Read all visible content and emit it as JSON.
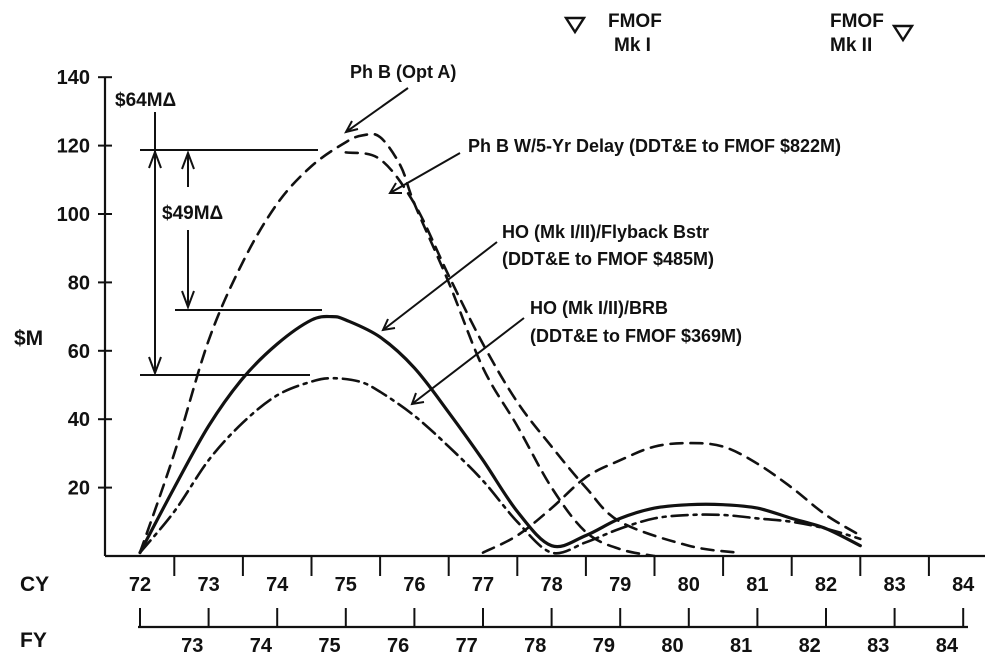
{
  "chart_data": {
    "type": "line",
    "ylabel": "$M",
    "ylim": [
      0,
      140
    ],
    "yticks": [
      20,
      40,
      60,
      80,
      100,
      120,
      140
    ],
    "x_axis_label": "CY",
    "x_ticks": [
      "72",
      "73",
      "74",
      "75",
      "76",
      "77",
      "78",
      "79",
      "80",
      "81",
      "82",
      "83",
      "84"
    ],
    "fy_axis_label": "FY",
    "fy_ticks": [
      "73",
      "74",
      "75",
      "76",
      "77",
      "78",
      "79",
      "80",
      "81",
      "82",
      "83",
      "84"
    ],
    "milestones": [
      {
        "line1": "FMOF",
        "line2": "Mk I"
      },
      {
        "line1": "FMOF",
        "line2": "Mk II"
      }
    ],
    "series": [
      {
        "name": "Ph B (Opt A)",
        "style": "dashed",
        "points": [
          [
            72,
            1
          ],
          [
            72.5,
            30
          ],
          [
            73,
            63
          ],
          [
            73.5,
            86
          ],
          [
            74,
            103
          ],
          [
            74.5,
            114
          ],
          [
            75,
            121
          ],
          [
            75.25,
            123
          ],
          [
            75.5,
            122.5
          ],
          [
            75.8,
            114
          ],
          [
            76,
            103
          ],
          [
            76.5,
            80
          ],
          [
            77,
            55
          ],
          [
            77.5,
            38
          ],
          [
            78,
            20
          ],
          [
            78.5,
            7
          ],
          [
            79,
            2
          ],
          [
            79.5,
            0
          ]
        ]
      },
      {
        "name": "Ph B W/5-Yr Delay (DDT&E to FMOF $822M)",
        "style": "dashed",
        "points": [
          [
            75,
            118
          ],
          [
            75.5,
            116
          ],
          [
            76,
            103
          ],
          [
            76.5,
            82
          ],
          [
            77,
            62
          ],
          [
            77.5,
            45
          ],
          [
            78,
            32
          ],
          [
            78.5,
            20
          ],
          [
            79,
            10
          ],
          [
            80,
            3
          ],
          [
            80.7,
            1
          ]
        ]
      },
      {
        "name": "",
        "style": "dashed",
        "points": [
          [
            77,
            1
          ],
          [
            77.5,
            6
          ],
          [
            78,
            14
          ],
          [
            78.5,
            23
          ],
          [
            79,
            28
          ],
          [
            79.5,
            32
          ],
          [
            80,
            33
          ],
          [
            80.5,
            32
          ],
          [
            81,
            27
          ],
          [
            81.5,
            20
          ],
          [
            82,
            12
          ],
          [
            82.5,
            6
          ]
        ]
      },
      {
        "name": "HO (Mk I/II)/Flyback Bstr (DDT&E to FMOF $485M)",
        "style": "solid",
        "points": [
          [
            72,
            1
          ],
          [
            72.5,
            20
          ],
          [
            73,
            38
          ],
          [
            73.5,
            52
          ],
          [
            74,
            62
          ],
          [
            74.5,
            69
          ],
          [
            74.8,
            70
          ],
          [
            75,
            69
          ],
          [
            75.5,
            64
          ],
          [
            76,
            55
          ],
          [
            76.5,
            42
          ],
          [
            77,
            28
          ],
          [
            77.5,
            13
          ],
          [
            78,
            3
          ],
          [
            78.5,
            6
          ],
          [
            79,
            11
          ],
          [
            79.5,
            14
          ],
          [
            80,
            15
          ],
          [
            80.5,
            15
          ],
          [
            81,
            14
          ],
          [
            81.5,
            11
          ],
          [
            82,
            8
          ],
          [
            82.5,
            3
          ]
        ]
      },
      {
        "name": "HO (Mk I/II)/BRB (DDT&E to FMOF $369M)",
        "style": "dash-dot",
        "points": [
          [
            72,
            1
          ],
          [
            72.5,
            13
          ],
          [
            73,
            28
          ],
          [
            73.5,
            39
          ],
          [
            74,
            47
          ],
          [
            74.5,
            51
          ],
          [
            74.8,
            52
          ],
          [
            75.2,
            51
          ],
          [
            75.5,
            48
          ],
          [
            76,
            41
          ],
          [
            76.5,
            32
          ],
          [
            77,
            22
          ],
          [
            77.5,
            10
          ],
          [
            78,
            1
          ],
          [
            78.5,
            4
          ],
          [
            79,
            8
          ],
          [
            79.5,
            11
          ],
          [
            80,
            12
          ],
          [
            80.5,
            12
          ],
          [
            81,
            11
          ],
          [
            81.5,
            10
          ],
          [
            82,
            8
          ],
          [
            82.5,
            5
          ]
        ]
      }
    ],
    "labels": {
      "phb_opt_a": "Ph B (Opt A)",
      "phb_delay": "Ph B W/5-Yr Delay (DDT&E to FMOF $822M)",
      "ho_flyback_1": "HO (Mk I/II)/Flyback Bstr",
      "ho_flyback_2": "(DDT&E to FMOF $485M)",
      "ho_brb_1": "HO (Mk I/II)/BRB",
      "ho_brb_2": "(DDT&E to FMOF $369M)",
      "delta_64": "$64MΔ",
      "delta_49": "$49MΔ"
    }
  }
}
